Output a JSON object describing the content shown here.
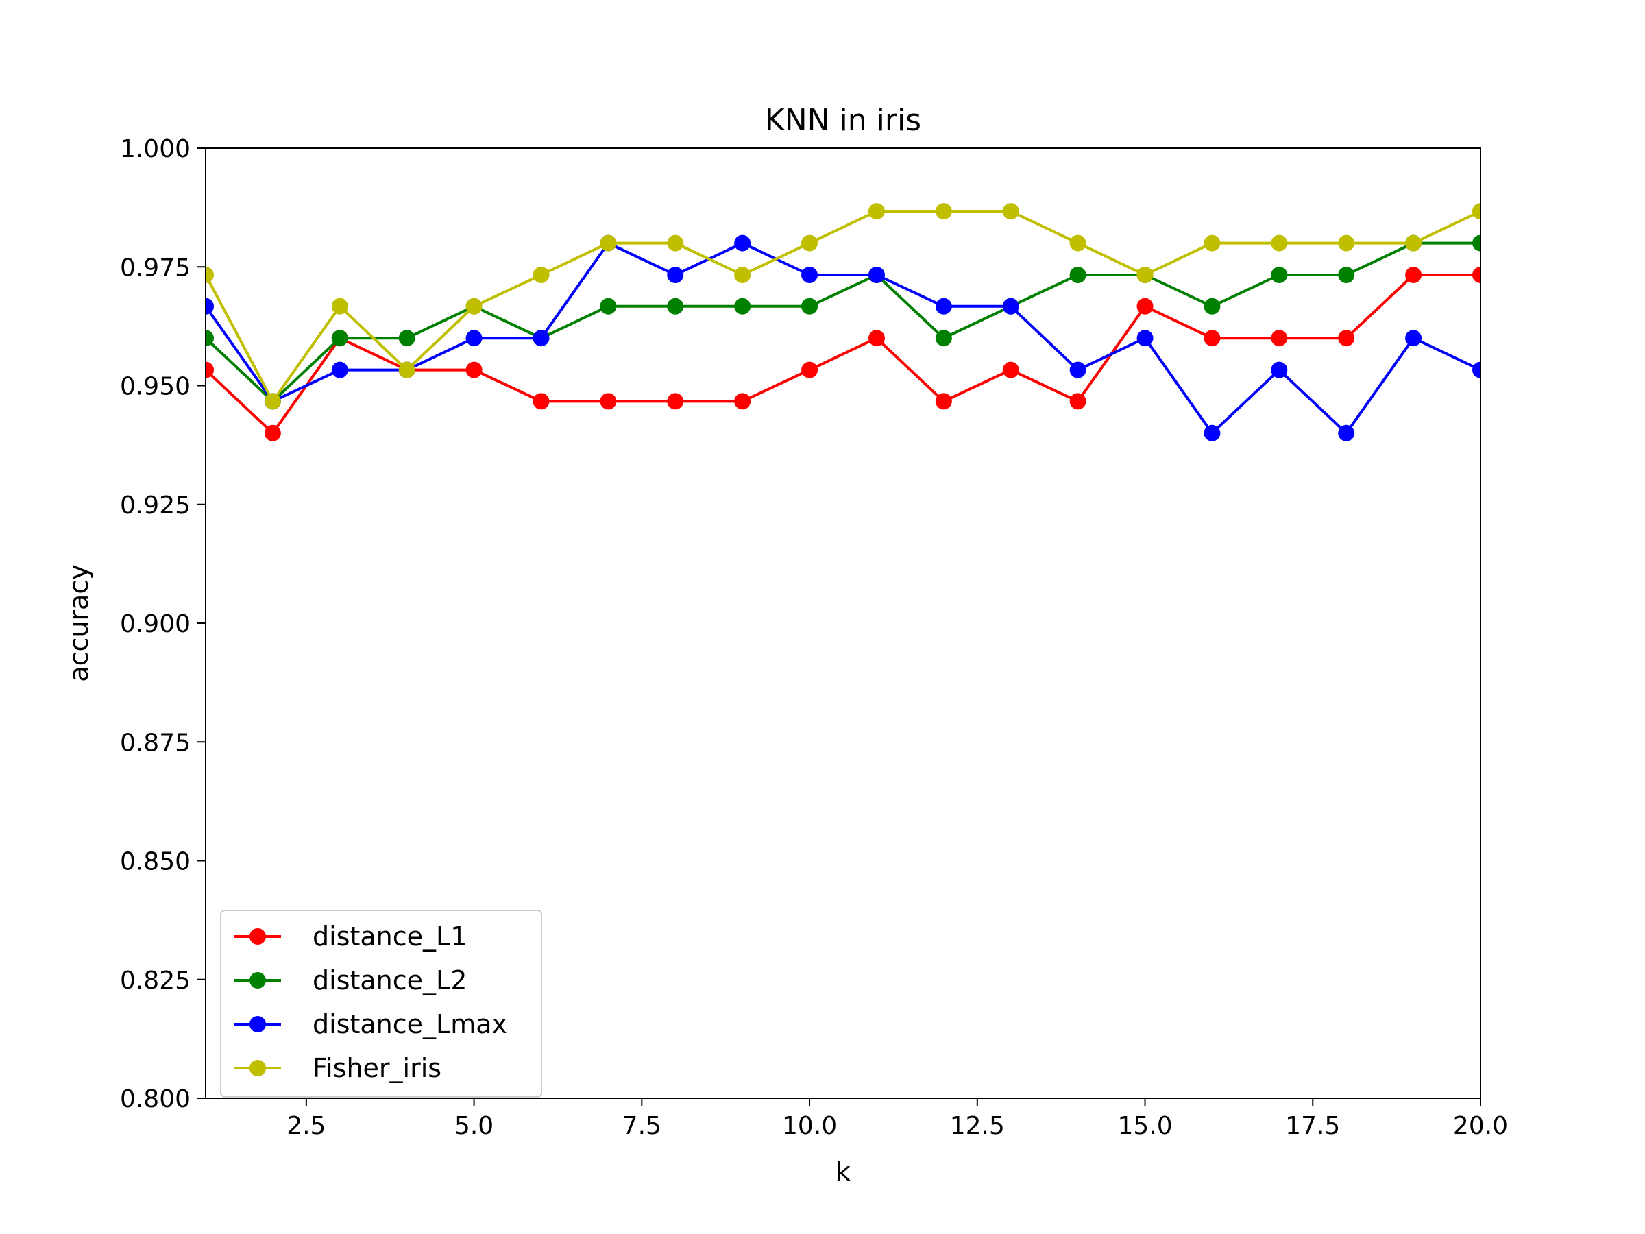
{
  "chart_data": {
    "type": "line",
    "title": "KNN in iris",
    "xlabel": "k",
    "ylabel": "accuracy",
    "xlim": [
      1,
      20
    ],
    "ylim": [
      0.8,
      1.0
    ],
    "x_ticks": [
      2.5,
      5.0,
      7.5,
      10.0,
      12.5,
      15.0,
      17.5,
      20.0
    ],
    "x_tick_labels": [
      "2.5",
      "5.0",
      "7.5",
      "10.0",
      "12.5",
      "15.0",
      "17.5",
      "20.0"
    ],
    "y_ticks": [
      0.8,
      0.825,
      0.85,
      0.875,
      0.9,
      0.925,
      0.95,
      0.975,
      1.0
    ],
    "y_tick_labels": [
      "0.800",
      "0.825",
      "0.850",
      "0.875",
      "0.900",
      "0.925",
      "0.950",
      "0.975",
      "1.000"
    ],
    "grid": false,
    "legend_position": "lower-left",
    "x": [
      1,
      2,
      3,
      4,
      5,
      6,
      7,
      8,
      9,
      10,
      11,
      12,
      13,
      14,
      15,
      16,
      17,
      18,
      19,
      20
    ],
    "series": [
      {
        "name": "distance_L1",
        "color": "#ff0000",
        "values": [
          0.9533,
          0.94,
          0.96,
          0.9533,
          0.9533,
          0.9467,
          0.9467,
          0.9467,
          0.9467,
          0.9533,
          0.96,
          0.9467,
          0.9533,
          0.9467,
          0.9667,
          0.96,
          0.96,
          0.96,
          0.9733,
          0.9733
        ]
      },
      {
        "name": "distance_L2",
        "color": "#008000",
        "values": [
          0.96,
          0.9467,
          0.96,
          0.96,
          0.9667,
          0.96,
          0.9667,
          0.9667,
          0.9667,
          0.9667,
          0.9733,
          0.96,
          0.9667,
          0.9733,
          0.9733,
          0.9667,
          0.9733,
          0.9733,
          0.98,
          0.98
        ]
      },
      {
        "name": "distance_Lmax",
        "color": "#0000ff",
        "values": [
          0.9667,
          0.9467,
          0.9533,
          0.9533,
          0.96,
          0.96,
          0.98,
          0.9733,
          0.98,
          0.9733,
          0.9733,
          0.9667,
          0.9667,
          0.9533,
          0.96,
          0.94,
          0.9533,
          0.94,
          0.96,
          0.9533
        ]
      },
      {
        "name": "Fisher_iris",
        "color": "#bfbf00",
        "values": [
          0.9733,
          0.9467,
          0.9667,
          0.9533,
          0.9667,
          0.9733,
          0.98,
          0.98,
          0.9733,
          0.98,
          0.9867,
          0.9867,
          0.9867,
          0.98,
          0.9733,
          0.98,
          0.98,
          0.98,
          0.98,
          0.9867
        ]
      }
    ]
  }
}
